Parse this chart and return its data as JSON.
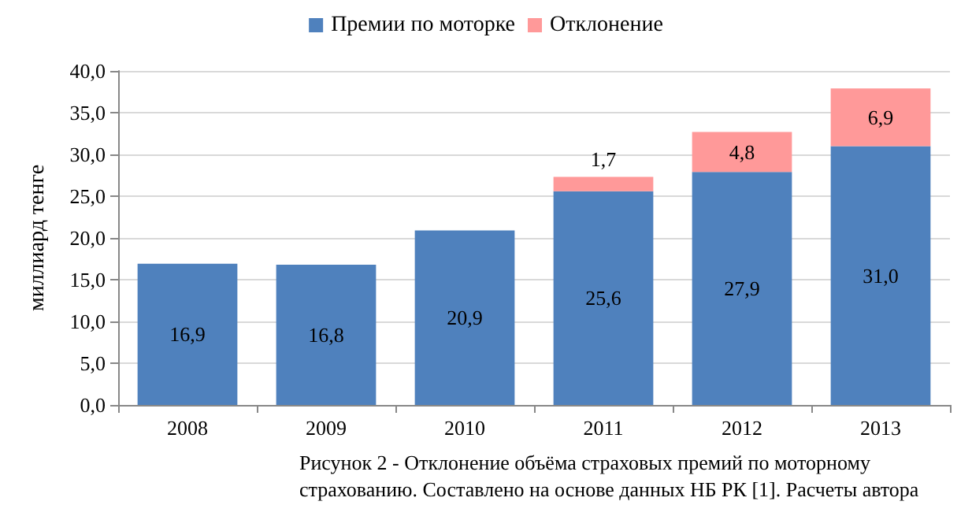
{
  "chart_data": {
    "type": "bar",
    "stacked": true,
    "ylabel": "миллиард тенге",
    "categories": [
      "2008",
      "2009",
      "2010",
      "2011",
      "2012",
      "2013"
    ],
    "series": [
      {
        "name": "Премии по моторке",
        "color": "#4f81bd",
        "values": [
          16.9,
          16.8,
          20.9,
          25.6,
          27.9,
          31.0
        ],
        "value_labels": [
          "16,9",
          "16,8",
          "20,9",
          "25,6",
          "27,9",
          "31,0"
        ]
      },
      {
        "name": "Отклонение",
        "color": "#ff9999",
        "values": [
          null,
          null,
          null,
          1.7,
          4.8,
          6.9
        ],
        "value_labels": [
          null,
          null,
          null,
          "1,7",
          "4,8",
          "6,9"
        ]
      }
    ],
    "ylim": [
      0,
      40
    ],
    "yticks": [
      {
        "value": 0,
        "label": "0,0"
      },
      {
        "value": 5,
        "label": "5,0"
      },
      {
        "value": 10,
        "label": "10,0"
      },
      {
        "value": 15,
        "label": "15,0"
      },
      {
        "value": 20,
        "label": "20,0"
      },
      {
        "value": 25,
        "label": "25,0"
      },
      {
        "value": 30,
        "label": "30,0"
      },
      {
        "value": 35,
        "label": "35,0"
      },
      {
        "value": 40,
        "label": "40,0"
      }
    ],
    "grid": "y",
    "legend": "top",
    "annotations": [
      "Рисунок 2 - Отклонение объёма страховых премий по моторному\nстрахованию. Составлено на основе данных НБ РК [1]. Расчеты автора"
    ]
  }
}
